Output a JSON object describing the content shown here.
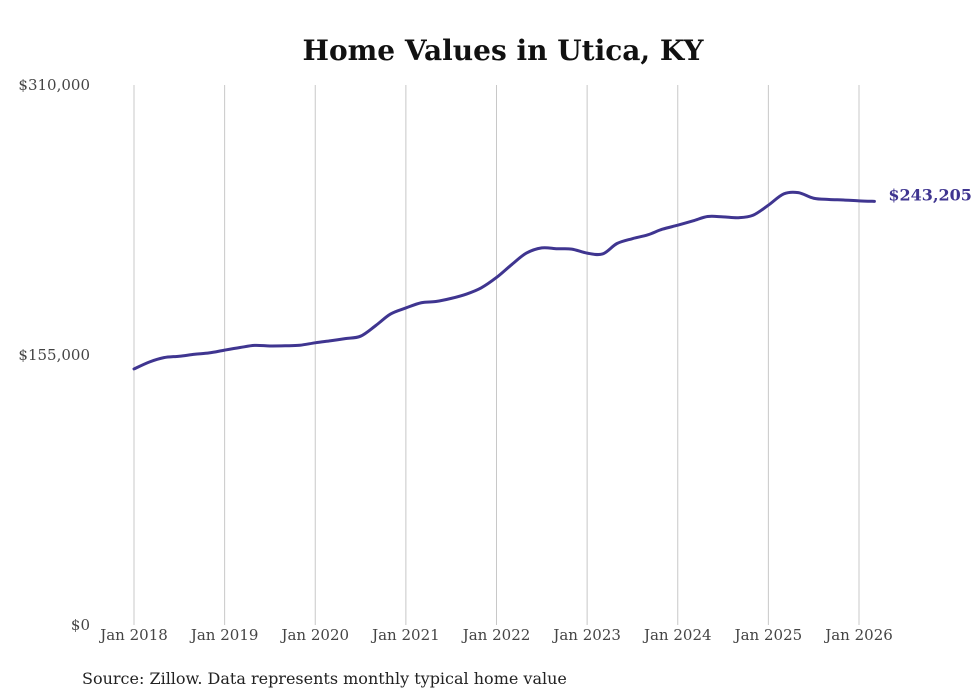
{
  "chart_data": {
    "type": "line",
    "title": "Home Values in Utica, KY",
    "xlabel": "",
    "ylabel": "",
    "ylim": [
      0,
      310000
    ],
    "xlim": [
      2018.0,
      2026.2
    ],
    "y_ticks": [
      {
        "value": 0,
        "label": "$0"
      },
      {
        "value": 155000,
        "label": "$155,000"
      },
      {
        "value": 310000,
        "label": "$310,000"
      }
    ],
    "x_ticks": [
      {
        "value": 2018,
        "label": "Jan 2018"
      },
      {
        "value": 2019,
        "label": "Jan 2019"
      },
      {
        "value": 2020,
        "label": "Jan 2020"
      },
      {
        "value": 2021,
        "label": "Jan 2021"
      },
      {
        "value": 2022,
        "label": "Jan 2022"
      },
      {
        "value": 2023,
        "label": "Jan 2023"
      },
      {
        "value": 2024,
        "label": "Jan 2024"
      },
      {
        "value": 2025,
        "label": "Jan 2025"
      },
      {
        "value": 2026,
        "label": "Jan 2026"
      }
    ],
    "grid": {
      "vertical": true,
      "horizontal": false
    },
    "series": [
      {
        "name": "Typical home value",
        "color": "#3f3590",
        "end_label": "$243,205",
        "points": [
          [
            2018.0,
            147000
          ],
          [
            2018.17,
            151000
          ],
          [
            2018.33,
            153500
          ],
          [
            2018.5,
            154300
          ],
          [
            2018.67,
            155400
          ],
          [
            2018.83,
            156200
          ],
          [
            2019.0,
            157800
          ],
          [
            2019.17,
            159300
          ],
          [
            2019.33,
            160500
          ],
          [
            2019.5,
            160200
          ],
          [
            2019.67,
            160300
          ],
          [
            2019.83,
            160600
          ],
          [
            2020.0,
            162000
          ],
          [
            2020.17,
            163200
          ],
          [
            2020.33,
            164400
          ],
          [
            2020.5,
            165800
          ],
          [
            2020.67,
            172000
          ],
          [
            2020.83,
            178500
          ],
          [
            2021.0,
            182000
          ],
          [
            2021.17,
            185000
          ],
          [
            2021.33,
            185700
          ],
          [
            2021.5,
            187500
          ],
          [
            2021.67,
            190000
          ],
          [
            2021.83,
            193500
          ],
          [
            2022.0,
            199500
          ],
          [
            2022.17,
            207000
          ],
          [
            2022.33,
            213500
          ],
          [
            2022.5,
            216500
          ],
          [
            2022.67,
            216000
          ],
          [
            2022.83,
            215800
          ],
          [
            2023.0,
            213500
          ],
          [
            2023.17,
            213000
          ],
          [
            2023.33,
            219000
          ],
          [
            2023.5,
            221800
          ],
          [
            2023.67,
            224000
          ],
          [
            2023.83,
            227200
          ],
          [
            2024.0,
            229500
          ],
          [
            2024.17,
            232000
          ],
          [
            2024.33,
            234500
          ],
          [
            2024.5,
            234300
          ],
          [
            2024.67,
            233800
          ],
          [
            2024.83,
            235200
          ],
          [
            2025.0,
            241000
          ],
          [
            2025.17,
            247500
          ],
          [
            2025.33,
            248200
          ],
          [
            2025.5,
            245000
          ],
          [
            2025.67,
            244300
          ],
          [
            2025.83,
            244000
          ],
          [
            2026.0,
            243500
          ],
          [
            2026.17,
            243205
          ]
        ]
      }
    ],
    "source": "Source: Zillow. Data represents monthly typical home value"
  }
}
